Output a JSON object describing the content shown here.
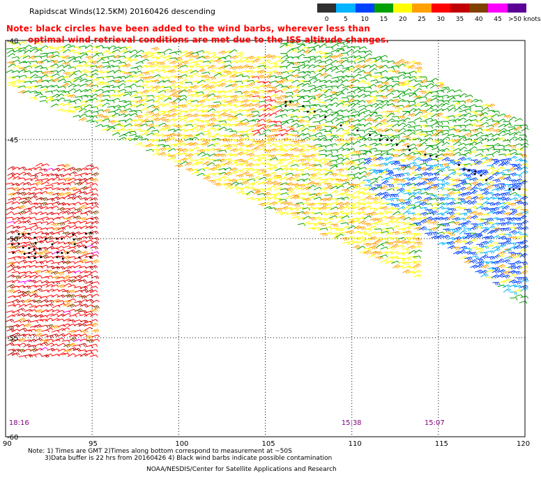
{
  "title": "Rapidscat Winds(12.5KM) 20160426 descending",
  "note": {
    "line1": "Note: black circles have been added to the wind barbs, wherever less than",
    "line2": "optimal wind retrieval conditions are met due to the ISS altitude changes."
  },
  "legend": {
    "unit": "knots",
    "bins": [
      {
        "label": "0",
        "color": "#303030"
      },
      {
        "label": "5",
        "color": "#00b4ff"
      },
      {
        "label": "10",
        "color": "#0040ff"
      },
      {
        "label": "15",
        "color": "#00a000"
      },
      {
        "label": "20",
        "color": "#ffff00"
      },
      {
        "label": "25",
        "color": "#ffa000"
      },
      {
        "label": "30",
        "color": "#ff0000"
      },
      {
        "label": "35",
        "color": "#c00000"
      },
      {
        "label": "40",
        "color": "#804000"
      },
      {
        "label": "45",
        "color": "#ff00ff"
      },
      {
        "label": ">50",
        "color": "#5a0096"
      }
    ],
    "last_label": ">50 knots"
  },
  "axes": {
    "lat_ticks": [
      "-40",
      "-45",
      "-50",
      "-55",
      "-60"
    ],
    "lon_ticks": [
      "90",
      "95",
      "100",
      "105",
      "110",
      "115",
      "120"
    ],
    "lat_range": [
      -60,
      -40
    ],
    "lon_range": [
      90,
      120
    ],
    "grid": "dotted"
  },
  "pass_times": [
    {
      "label": "18:16",
      "lon": 90.4
    },
    {
      "label": "15:38",
      "lon": 109.6
    },
    {
      "label": "15:07",
      "lon": 114.4
    }
  ],
  "footer": {
    "line1": "Note: 1) Times are GMT 2)Times along bottom correspond to measurement at ~50S",
    "line2": "3)Data buffer is 22 hrs from 20160426 4) Black wind barbs indicate possible contamination",
    "line3": "NOAA/NESDIS/Center for Satellite Applications and Research"
  }
}
